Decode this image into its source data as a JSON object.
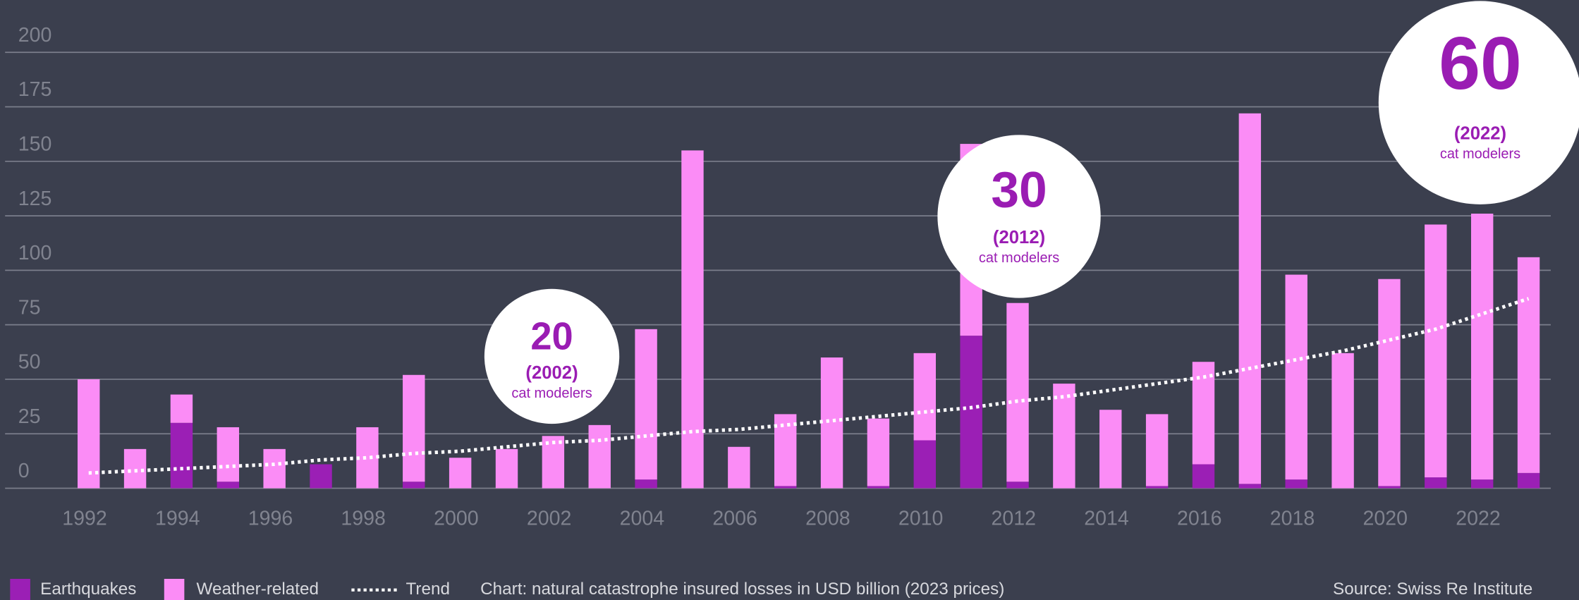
{
  "chart_data": {
    "type": "bar",
    "stacked": true,
    "categories": [
      "1992",
      null,
      "1994",
      null,
      "1996",
      null,
      "1998",
      null,
      "2000",
      null,
      "2002",
      null,
      "2004",
      null,
      "2006",
      null,
      "2008",
      null,
      "2010",
      null,
      "2012",
      null,
      "2014",
      null,
      "2016",
      null,
      "2018",
      null,
      "2020",
      null,
      "2022",
      null
    ],
    "series": [
      {
        "name": "Earthquakes",
        "color": "#9b1fb5",
        "values": [
          0,
          0,
          30,
          3,
          0,
          11,
          0,
          3,
          0,
          0,
          0,
          0,
          4,
          0,
          0,
          1,
          0,
          1,
          22,
          70,
          3,
          0,
          0,
          1,
          11,
          2,
          4,
          0,
          1,
          5,
          4,
          7
        ]
      },
      {
        "name": "Weather-related",
        "color": "#fb8cf6",
        "values": [
          50,
          18,
          13,
          25,
          18,
          0,
          28,
          49,
          14,
          18,
          24,
          29,
          69,
          155,
          19,
          33,
          60,
          31,
          40,
          88,
          82,
          48,
          36,
          33,
          47,
          170,
          94,
          62,
          95,
          116,
          122,
          99
        ]
      }
    ],
    "trend": {
      "name": "Trend",
      "color": "#ffffff",
      "values": [
        7,
        8,
        9,
        10,
        11,
        13,
        14,
        16,
        17,
        19,
        21,
        22,
        24,
        26,
        27,
        29,
        31,
        33,
        35,
        37,
        40,
        42,
        45,
        48,
        51,
        55,
        59,
        63,
        68,
        73,
        80,
        87
      ]
    },
    "ylim": [
      0,
      200
    ],
    "yticks": [
      0,
      25,
      50,
      75,
      100,
      125,
      150,
      175,
      200
    ],
    "grid": true,
    "annotations": [
      {
        "value": "20",
        "year": "(2002)",
        "note": "cat modelers"
      },
      {
        "value": "30",
        "year": "(2012)",
        "note": "cat modelers"
      },
      {
        "value": "60",
        "year": "(2022)",
        "note": "cat modelers"
      }
    ],
    "caption": "Chart: natural catastrophe insured losses in USD billion (2023 prices)",
    "source": "Source: Swiss Re Institute"
  }
}
